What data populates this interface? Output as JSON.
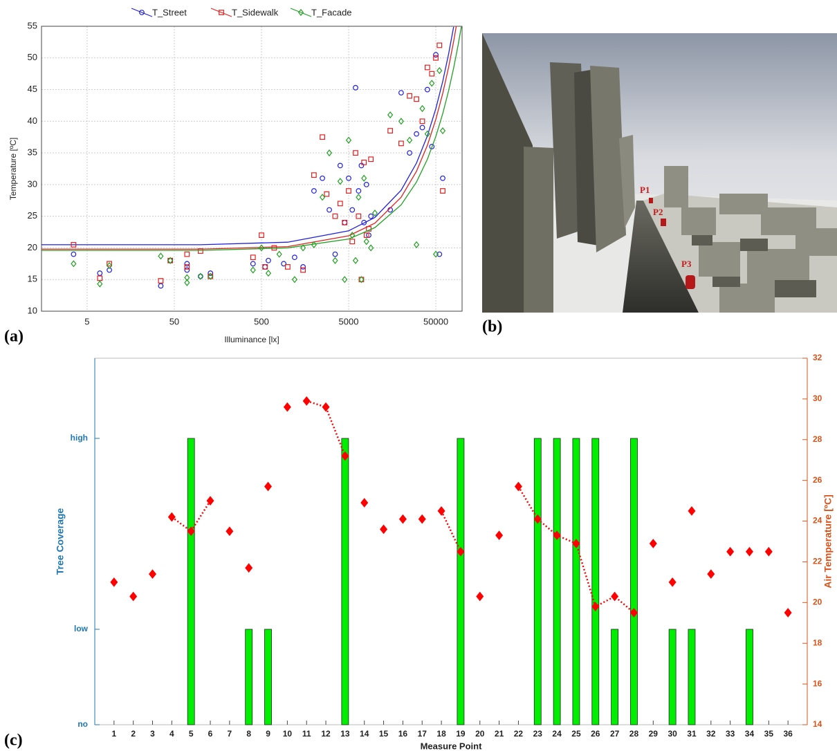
{
  "chart_data": [
    {
      "type": "scatter",
      "panel_label": "(a)",
      "xlabel": "Illuminance [lx]",
      "ylabel": "Temperature [ºC]",
      "log_x": true,
      "grid": true,
      "xlim": [
        1.5,
        100000
      ],
      "ylim": [
        10,
        55
      ],
      "xticks": [
        5,
        50,
        500,
        5000,
        50000
      ],
      "yticks": [
        10,
        15,
        20,
        25,
        30,
        35,
        40,
        45,
        50,
        55
      ],
      "series": [
        {
          "name": "T_Street",
          "color": "#1f1fe0",
          "marker": "circle",
          "x": [
            3.5,
            7,
            9,
            35,
            45,
            70,
            70,
            100,
            130,
            400,
            550,
            600,
            900,
            1200,
            1500,
            2000,
            2500,
            3000,
            3500,
            4000,
            4500,
            5000,
            5500,
            6000,
            6500,
            7000,
            7500,
            8000,
            8500,
            9000,
            15000,
            20000,
            25000,
            30000,
            35000,
            40000,
            45000,
            50000,
            55000,
            60000
          ],
          "values": [
            19,
            16,
            16.5,
            14,
            18,
            17.5,
            16.5,
            15.5,
            16,
            17.5,
            17,
            18,
            17.5,
            18.5,
            17,
            29,
            31,
            26,
            19,
            33,
            24,
            31,
            26,
            45.3,
            29,
            33,
            24,
            30,
            22,
            25,
            26,
            44.5,
            35,
            38,
            39,
            45,
            36,
            50.5,
            19,
            31
          ],
          "fit_x": [
            1.5,
            10,
            100,
            1000,
            5000,
            10000,
            20000,
            30000,
            40000,
            50000,
            60000,
            70000,
            80000
          ],
          "fit_values": [
            20.5,
            20.5,
            20.5,
            20.9,
            22.7,
            24.8,
            29.1,
            33.4,
            37.7,
            42.0,
            46.3,
            50.6,
            54.9
          ]
        },
        {
          "name": "T_Sidewalk",
          "color": "#e02020",
          "marker": "square",
          "x": [
            3.5,
            7,
            9,
            35,
            45,
            70,
            70,
            100,
            130,
            400,
            500,
            550,
            700,
            1000,
            1500,
            2000,
            2500,
            2800,
            3500,
            4000,
            4500,
            5000,
            5500,
            6000,
            6500,
            7000,
            7500,
            8000,
            8500,
            9000,
            15000,
            20000,
            25000,
            30000,
            35000,
            40000,
            45000,
            50000,
            55000,
            60000
          ],
          "values": [
            20.5,
            15.2,
            17.5,
            14.8,
            18,
            19,
            17,
            19.5,
            15.5,
            18.5,
            22,
            17,
            20,
            17,
            16.5,
            31.5,
            37.5,
            28.5,
            25,
            27,
            24,
            29,
            21,
            35,
            25,
            15,
            33.5,
            22,
            23,
            34,
            38.5,
            36.5,
            44,
            43.5,
            40,
            48.5,
            47.5,
            50,
            52,
            29
          ],
          "fit_x": [
            1.5,
            10,
            100,
            1000,
            5000,
            10000,
            20000,
            30000,
            40000,
            50000,
            60000,
            70000,
            80000,
            86000
          ],
          "fit_values": [
            19.8,
            19.8,
            19.8,
            20.2,
            21.9,
            23.9,
            28.0,
            32.1,
            36.2,
            40.3,
            44.4,
            48.5,
            52.6,
            55.1
          ]
        },
        {
          "name": "T_Facade",
          "color": "#20a020",
          "marker": "diamond",
          "x": [
            3.5,
            7,
            9,
            35,
            45,
            70,
            70,
            100,
            130,
            400,
            500,
            600,
            800,
            1200,
            1500,
            2000,
            2500,
            3000,
            3500,
            4000,
            4500,
            5000,
            5500,
            6000,
            6500,
            7000,
            7500,
            8000,
            9000,
            10000,
            15000,
            20000,
            25000,
            30000,
            35000,
            40000,
            45000,
            50000,
            55000,
            60000
          ],
          "values": [
            17.5,
            14.3,
            17.2,
            18.7,
            18,
            15.3,
            14.5,
            15.5,
            15.5,
            16.5,
            20,
            16,
            19,
            15,
            20,
            20.5,
            28,
            35,
            18,
            30.5,
            15,
            37,
            22,
            18,
            28,
            15,
            31,
            21,
            20,
            25.5,
            41,
            40,
            37,
            20.5,
            42,
            38,
            46,
            19,
            48,
            38.5
          ],
          "fit_x": [
            1.5,
            10,
            100,
            1000,
            5000,
            10000,
            20000,
            30000,
            40000,
            50000,
            60000,
            70000,
            80000,
            90000,
            98000
          ],
          "fit_values": [
            19.6,
            19.6,
            19.6,
            20.0,
            21.4,
            23.2,
            26.8,
            30.4,
            34.0,
            37.6,
            41.2,
            44.8,
            48.4,
            52.0,
            54.9
          ]
        }
      ]
    },
    {
      "type": "bar",
      "panel_label": "(c)",
      "xlabel": "Measure Point",
      "ylabel": "Tree Coverage",
      "y2label": "Air Temperature [ºC]",
      "categories": [
        "1",
        "2",
        "3",
        "4",
        "5",
        "6",
        "7",
        "8",
        "9",
        "10",
        "11",
        "12",
        "13",
        "14",
        "15",
        "16",
        "17",
        "18",
        "19",
        "20",
        "21",
        "22",
        "23",
        "24",
        "25",
        "26",
        "27",
        "28",
        "29",
        "30",
        "31",
        "32",
        "33",
        "34",
        "35",
        "36"
      ],
      "ylim": [
        0,
        3.84
      ],
      "yticks": [
        {
          "value": 0,
          "label": "no"
        },
        {
          "value": 1,
          "label": "low"
        },
        {
          "value": 3,
          "label": "high"
        }
      ],
      "y2lim": [
        14,
        32
      ],
      "y2ticks": [
        14,
        16,
        18,
        20,
        22,
        24,
        26,
        28,
        30,
        32
      ],
      "left_axis_color": "#1f77b4",
      "right_axis_color": "#d95319",
      "series": [
        {
          "color": "#00ee00",
          "values": [
            0,
            0,
            0,
            0,
            3,
            0,
            0,
            1,
            1,
            0,
            0,
            0,
            3,
            0,
            0,
            0,
            0,
            0,
            3,
            0,
            0,
            0,
            3,
            3,
            3,
            3,
            1,
            3,
            0,
            1,
            1,
            0,
            0,
            1,
            0,
            0
          ]
        },
        {
          "color": "#ff0000",
          "axis": "y2",
          "marker": "diamond",
          "values": [
            21.0,
            20.3,
            21.4,
            24.2,
            23.5,
            25.0,
            23.5,
            21.7,
            25.7,
            29.6,
            29.9,
            29.6,
            27.2,
            24.9,
            23.6,
            24.1,
            24.1,
            24.5,
            22.5,
            20.3,
            23.3,
            25.7,
            24.1,
            23.3,
            22.9,
            19.8,
            20.3,
            19.5,
            22.9,
            21.0,
            24.5,
            21.4,
            22.5,
            22.5,
            22.5,
            19.5
          ],
          "dotted_groups": [
            [
              3,
              4,
              5
            ],
            [
              10,
              11,
              12
            ],
            [
              17,
              18
            ],
            [
              21,
              22,
              23,
              24,
              25,
              26,
              27
            ]
          ]
        }
      ]
    }
  ],
  "panel_b": {
    "label": "(b)",
    "points": [
      "P1",
      "P2",
      "P3"
    ]
  }
}
